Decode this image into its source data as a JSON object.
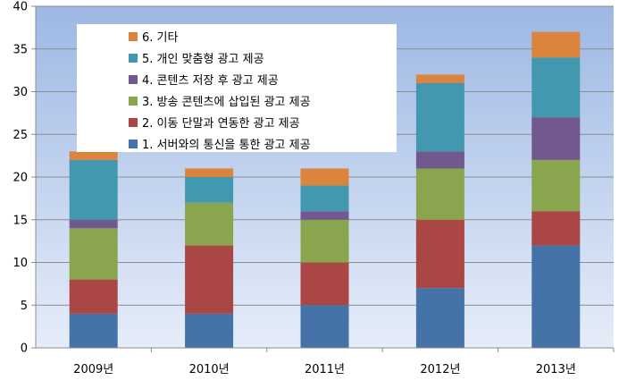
{
  "chart_data": {
    "type": "bar",
    "stacked": true,
    "categories": [
      "2009년",
      "2010년",
      "2011년",
      "2012년",
      "2013년"
    ],
    "ylim": [
      0,
      40
    ],
    "yticks": [
      0,
      5,
      10,
      15,
      20,
      25,
      30,
      35,
      40
    ],
    "grid": true,
    "legend_position": "top-left",
    "series": [
      {
        "name": "1. 서버와의 통신을 통한 광고 제공",
        "color": "#4572A7",
        "values": [
          4,
          4,
          5,
          7,
          12
        ]
      },
      {
        "name": "2. 이동 단말과 연동한 광고 제공",
        "color": "#AA4643",
        "values": [
          4,
          8,
          5,
          8,
          4
        ]
      },
      {
        "name": "3. 방송 콘텐츠에 삽입된 광고 제공",
        "color": "#89A54E",
        "values": [
          6,
          5,
          5,
          6,
          6
        ]
      },
      {
        "name": "4. 콘텐츠 저장 후 광고 제공",
        "color": "#71588F",
        "values": [
          1,
          0,
          1,
          2,
          5
        ]
      },
      {
        "name": "5. 개인 맞춤형 광고 제공",
        "color": "#4198AF",
        "values": [
          7,
          3,
          3,
          8,
          7
        ]
      },
      {
        "name": "6. 기타",
        "color": "#DB843D",
        "values": [
          1,
          1,
          2,
          1,
          3
        ]
      }
    ]
  }
}
